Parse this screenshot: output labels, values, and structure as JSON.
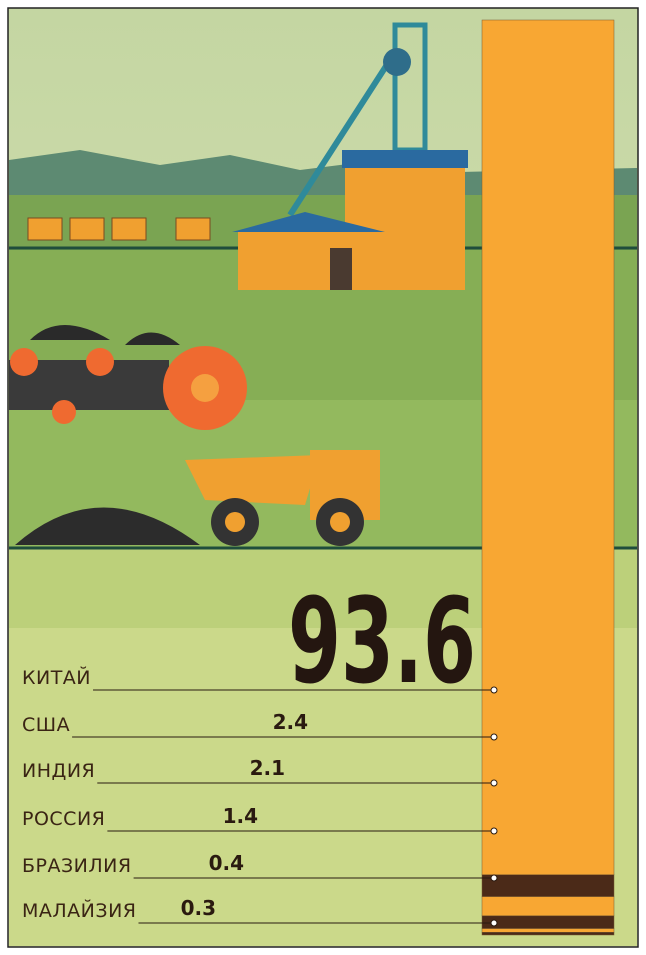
{
  "chart_data": {
    "type": "stacked-bar",
    "categories": [
      "КИТАЙ",
      "США",
      "ИНДИЯ",
      "РОССИЯ",
      "БРАЗИЛИЯ",
      "МАЛАЙЗИЯ"
    ],
    "values": [
      93.6,
      2.4,
      2.1,
      1.4,
      0.4,
      0.3
    ],
    "colors": [
      "#f8a733",
      "#4b2a18",
      "#f8a733",
      "#4b2a18",
      "#f8a733",
      "#4b2a18"
    ]
  }
}
